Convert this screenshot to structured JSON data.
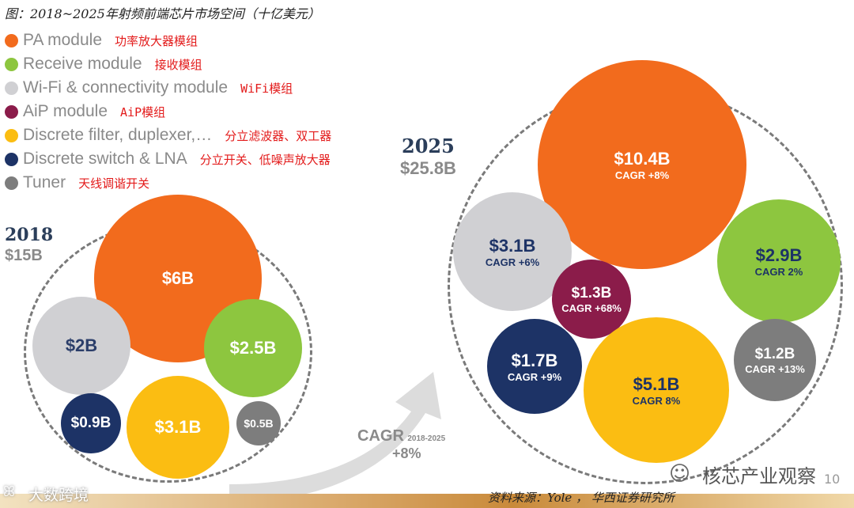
{
  "title": "图：2018~2025年射频前端芯片市场空间（十亿美元）",
  "legend": [
    {
      "en": "PA module",
      "cn": "功率放大器模组",
      "color": "#f26b1d"
    },
    {
      "en": "Receive module",
      "cn": "接收模组",
      "color": "#8dc63f"
    },
    {
      "en": "Wi-Fi & connectivity module",
      "cn": "WiFi模组",
      "color": "#d0d0d3"
    },
    {
      "en": "AiP module",
      "cn": "AiP模组",
      "color": "#8b1c4a"
    },
    {
      "en": "Discrete filter, duplexer,…",
      "cn": "分立滤波器、双工器",
      "color": "#fbbd12"
    },
    {
      "en": "Discrete switch & LNA",
      "cn": "分立开关、低噪声放大器",
      "color": "#1d3366"
    },
    {
      "en": "Tuner",
      "cn": "天线调谐开关",
      "color": "#7d7d7d"
    }
  ],
  "chart_data": {
    "type": "bubble",
    "title": "2018~2025年射频前端芯片市场空间（十亿美元）",
    "groups": [
      {
        "year": "2018",
        "total_label": "$15B",
        "total": 15,
        "bubbles": [
          {
            "category": "PA module",
            "value": 6,
            "label": "$6B"
          },
          {
            "category": "Wi-Fi & connectivity module",
            "value": 2,
            "label": "$2B"
          },
          {
            "category": "Receive module",
            "value": 2.5,
            "label": "$2.5B"
          },
          {
            "category": "Discrete switch & LNA",
            "value": 0.9,
            "label": "$0.9B"
          },
          {
            "category": "Discrete filter, duplexer,…",
            "value": 3.1,
            "label": "$3.1B"
          },
          {
            "category": "Tuner",
            "value": 0.5,
            "label": "$0.5B"
          }
        ]
      },
      {
        "year": "2025",
        "total_label": "$25.8B",
        "total": 25.8,
        "bubbles": [
          {
            "category": "PA module",
            "value": 10.4,
            "label": "$10.4B",
            "cagr": "CAGR +8%"
          },
          {
            "category": "Wi-Fi & connectivity module",
            "value": 3.1,
            "label": "$3.1B",
            "cagr": "CAGR +6%"
          },
          {
            "category": "Receive module",
            "value": 2.9,
            "label": "$2.9B",
            "cagr": "CAGR 2%"
          },
          {
            "category": "AiP module",
            "value": 1.3,
            "label": "$1.3B",
            "cagr": "CAGR +68%"
          },
          {
            "category": "Discrete switch & LNA",
            "value": 1.7,
            "label": "$1.7B",
            "cagr": "CAGR +9%"
          },
          {
            "category": "Discrete filter, duplexer,…",
            "value": 5.1,
            "label": "$5.1B",
            "cagr": "CAGR 8%"
          },
          {
            "category": "Tuner",
            "value": 1.2,
            "label": "$1.2B",
            "cagr": "CAGR +13%"
          }
        ]
      }
    ],
    "overall_cagr": {
      "label": "CAGR",
      "period": "2018-2025",
      "value": "+8%"
    }
  },
  "source": "资料来源：Yole ， 华西证券研究所",
  "page_number": "10",
  "watermarks": {
    "left": "大数跨境",
    "right": "核芯产业观察"
  }
}
